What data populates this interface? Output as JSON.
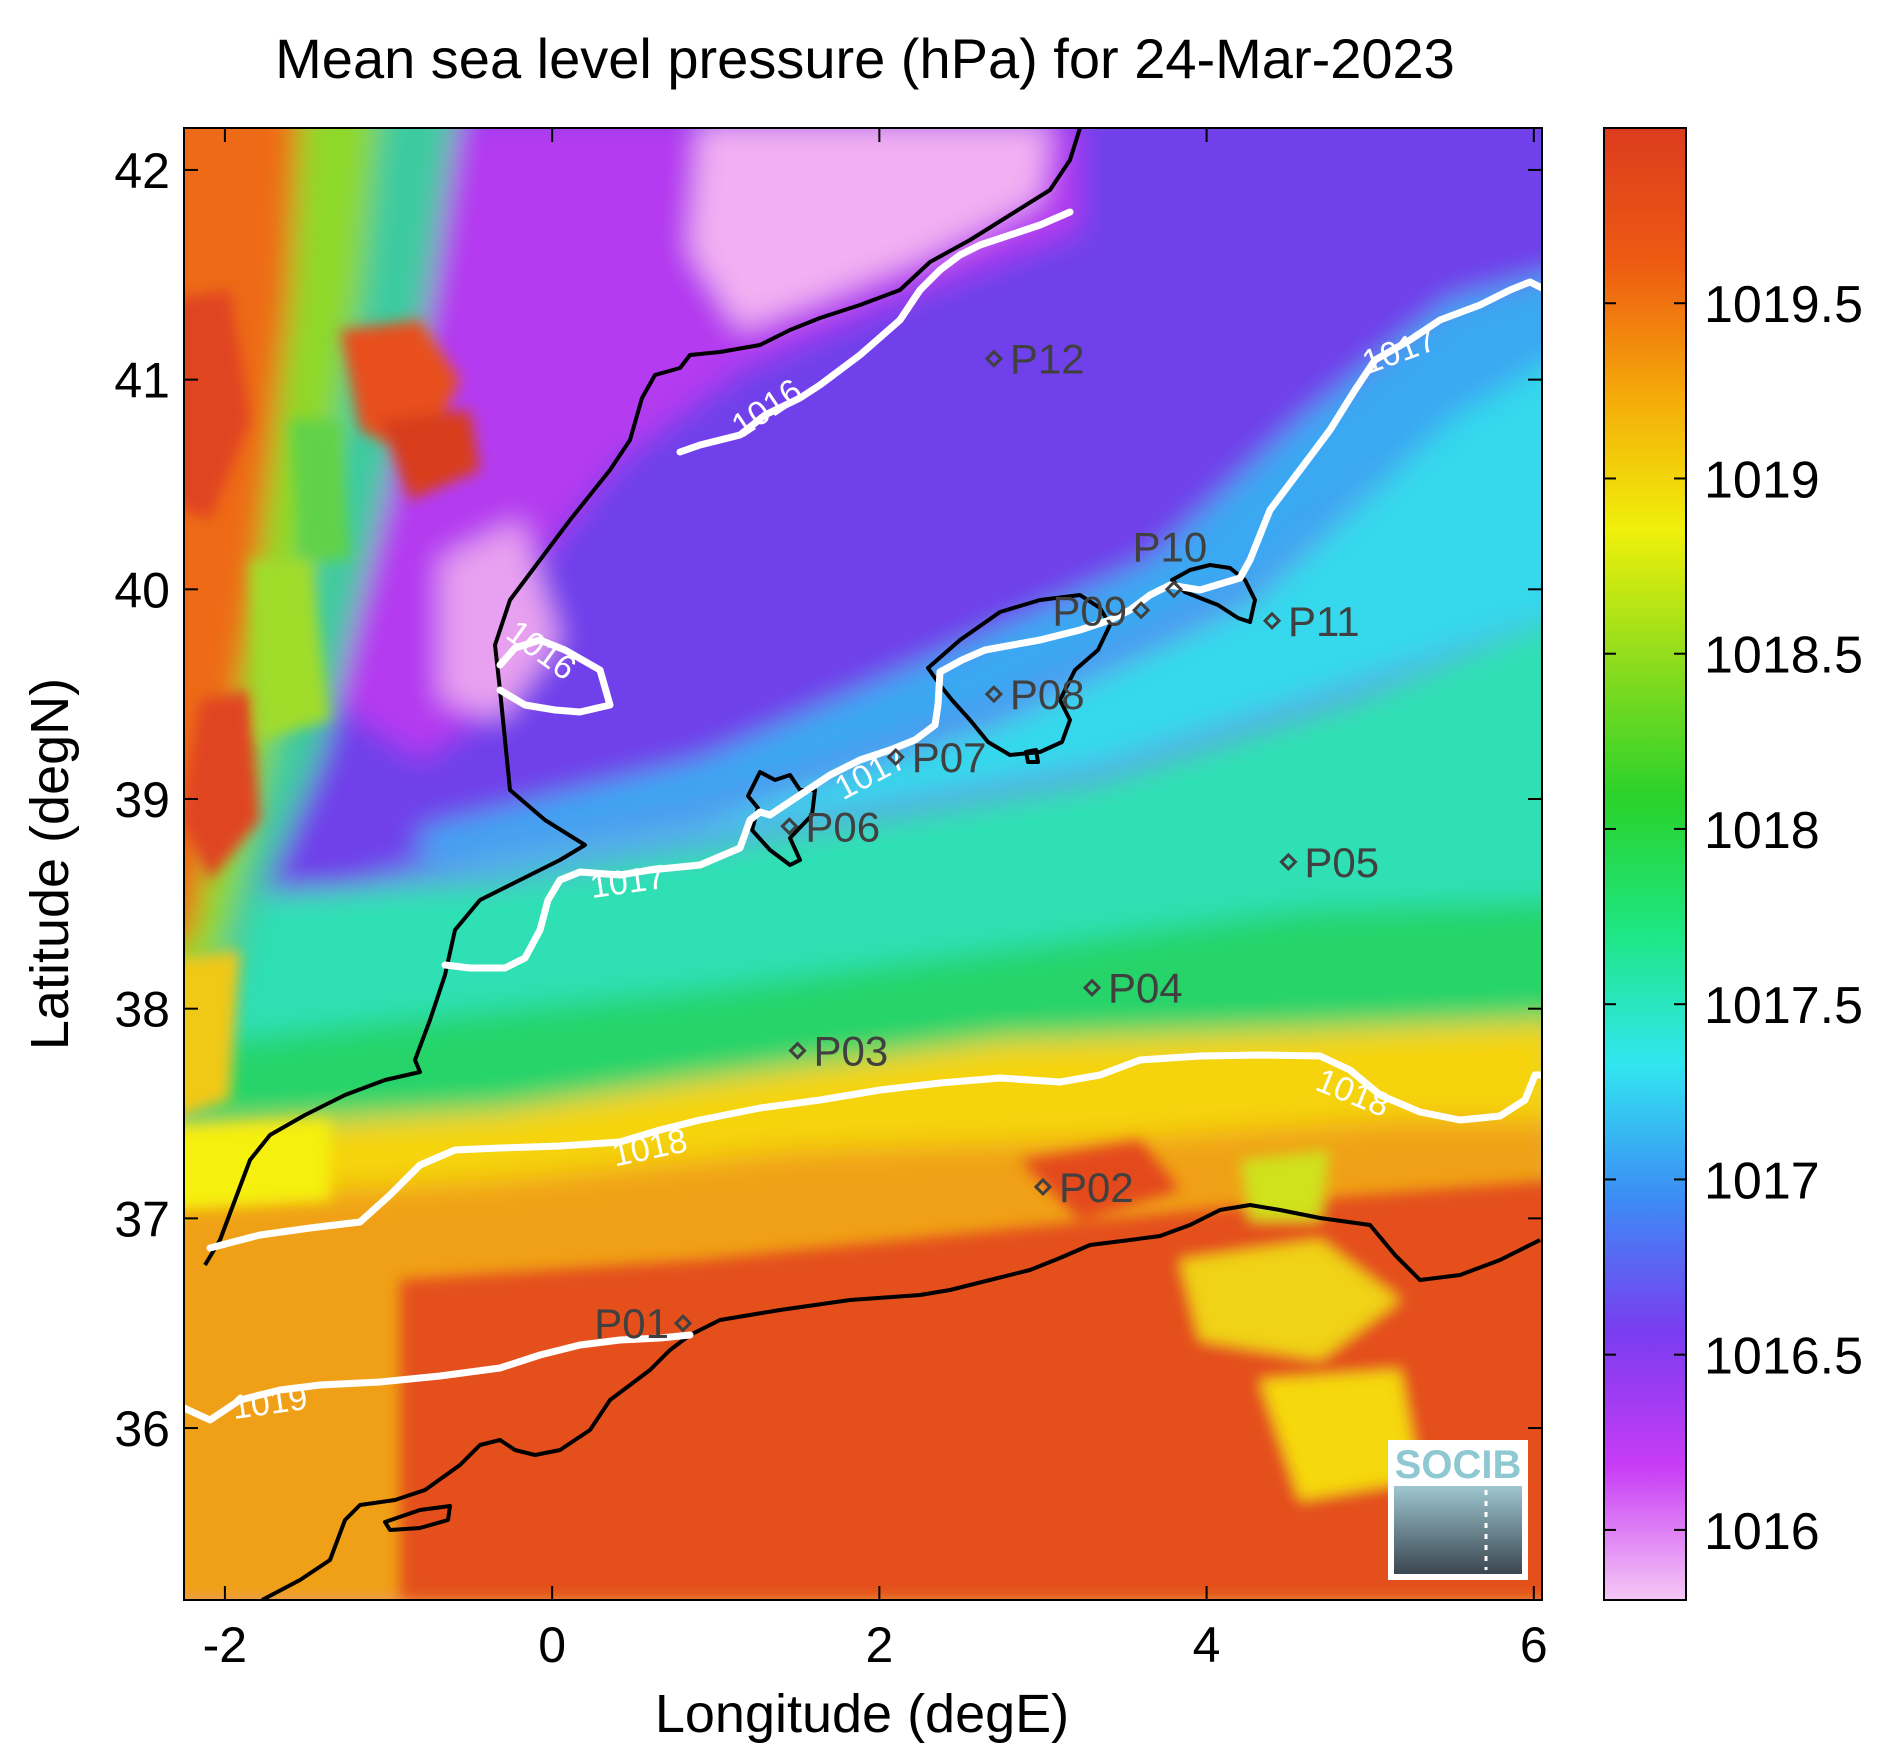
{
  "map": {
    "title": "Mean sea level pressure (hPa) for 24-Mar-2023",
    "xlabel": "Longitude (degE)",
    "ylabel": "Latitude (degN)",
    "x_ticks": [
      "-2",
      "0",
      "2",
      "4",
      "6"
    ],
    "y_ticks": [
      "36",
      "37",
      "38",
      "39",
      "40",
      "41",
      "42"
    ],
    "lon_range": [
      -2.25,
      6.05
    ],
    "lat_range": [
      35.18,
      42.2
    ],
    "logo_text": "SOCIB"
  },
  "colorbar": {
    "range": [
      1015.8,
      1020.0
    ],
    "ticks": [
      "1016",
      "1016.5",
      "1017",
      "1017.5",
      "1018",
      "1018.5",
      "1019",
      "1019.5"
    ],
    "colors": [
      "#f5c8f5",
      "#c83cf5",
      "#7a3cf0",
      "#3c8cf5",
      "#32e6f0",
      "#1ee682",
      "#2ad22a",
      "#8cdc1e",
      "#f0f00a",
      "#f5aa0a",
      "#ee5a12",
      "#dc3c1e"
    ]
  },
  "chart_data": {
    "type": "heatmap",
    "variable": "Mean sea level pressure (hPa)",
    "date": "24-Mar-2023",
    "contour_labels": [
      "1016",
      "1016",
      "1017",
      "1017",
      "1017",
      "1018",
      "1018",
      "1019"
    ],
    "stations": [
      {
        "label": "P01",
        "lon": 0.8,
        "lat": 36.5
      },
      {
        "label": "P02",
        "lon": 3.0,
        "lat": 37.15
      },
      {
        "label": "P03",
        "lon": 1.5,
        "lat": 37.8
      },
      {
        "label": "P04",
        "lon": 3.3,
        "lat": 38.1
      },
      {
        "label": "P05",
        "lon": 4.5,
        "lat": 38.7
      },
      {
        "label": "P06",
        "lon": 1.45,
        "lat": 38.87
      },
      {
        "label": "P07",
        "lon": 2.1,
        "lat": 39.2
      },
      {
        "label": "P08",
        "lon": 2.7,
        "lat": 39.5
      },
      {
        "label": "P09",
        "lon": 3.6,
        "lat": 39.9
      },
      {
        "label": "P10",
        "lon": 3.8,
        "lat": 40.0
      },
      {
        "label": "P11",
        "lon": 4.4,
        "lat": 39.85
      },
      {
        "label": "P12",
        "lon": 2.7,
        "lat": 41.1
      }
    ]
  }
}
